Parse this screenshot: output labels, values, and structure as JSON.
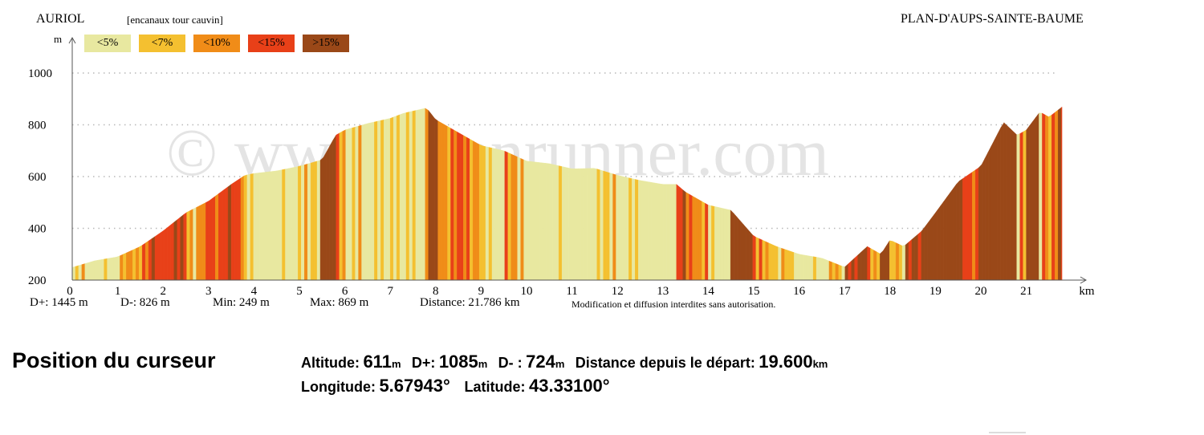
{
  "header": {
    "start": "AURIOL",
    "route": "[encanaux tour cauvin]",
    "end": "PLAN-D'AUPS-SAINTE-BAUME"
  },
  "watermark": "© www.openrunner.com",
  "legend": [
    {
      "label": "<5%",
      "color": "#e8e8a0"
    },
    {
      "label": "<7%",
      "color": "#f4c030"
    },
    {
      "label": "<10%",
      "color": "#f08c18"
    },
    {
      "label": "<15%",
      "color": "#e84018"
    },
    {
      "label": ">15%",
      "color": "#9a4818"
    }
  ],
  "chart_data": {
    "type": "area",
    "ylabel": "m",
    "xlabel": "km",
    "ylim": [
      200,
      1000
    ],
    "yticks": [
      200,
      400,
      600,
      800,
      1000
    ],
    "xlim": [
      0,
      21.786
    ],
    "xticks": [
      0,
      1,
      2,
      3,
      4,
      5,
      6,
      7,
      8,
      9,
      10,
      11,
      12,
      13,
      14,
      15,
      16,
      17,
      18,
      19,
      20,
      21
    ],
    "grid": "dotted-horizontal",
    "profile": [
      [
        0,
        249
      ],
      [
        0.5,
        275
      ],
      [
        1,
        290
      ],
      [
        1.5,
        330
      ],
      [
        2,
        390
      ],
      [
        2.5,
        460
      ],
      [
        3,
        505
      ],
      [
        3.5,
        570
      ],
      [
        3.8,
        605
      ],
      [
        4,
        612
      ],
      [
        4.5,
        622
      ],
      [
        5,
        640
      ],
      [
        5.5,
        665
      ],
      [
        5.8,
        760
      ],
      [
        6,
        780
      ],
      [
        6.5,
        805
      ],
      [
        7,
        825
      ],
      [
        7.3,
        845
      ],
      [
        7.8,
        865
      ],
      [
        8,
        820
      ],
      [
        8.5,
        770
      ],
      [
        9,
        720
      ],
      [
        9.5,
        700
      ],
      [
        10,
        660
      ],
      [
        10.5,
        650
      ],
      [
        11,
        630
      ],
      [
        11.5,
        632
      ],
      [
        12,
        605
      ],
      [
        12.5,
        585
      ],
      [
        13,
        570
      ],
      [
        13.3,
        570
      ],
      [
        13.5,
        540
      ],
      [
        14,
        490
      ],
      [
        14.5,
        470
      ],
      [
        15,
        370
      ],
      [
        15.5,
        330
      ],
      [
        16,
        300
      ],
      [
        16.5,
        285
      ],
      [
        17,
        250
      ],
      [
        17.5,
        330
      ],
      [
        17.8,
        300
      ],
      [
        18,
        355
      ],
      [
        18.3,
        330
      ],
      [
        18.7,
        390
      ],
      [
        19,
        460
      ],
      [
        19.5,
        580
      ],
      [
        20,
        640
      ],
      [
        20.5,
        810
      ],
      [
        20.8,
        760
      ],
      [
        21,
        780
      ],
      [
        21.3,
        850
      ],
      [
        21.5,
        830
      ],
      [
        21.786,
        869
      ]
    ]
  },
  "stats": {
    "dplus": "D+: 1445 m",
    "dminus": "D-: 826 m",
    "min": "Min: 249 m",
    "max": "Max: 869 m",
    "distance": "Distance: 21.786 km",
    "notice": "Modification et diffusion interdites sans autorisation."
  },
  "cursor": {
    "title": "Position du curseur",
    "altitude_label": "Altitude:",
    "altitude_value": "611",
    "altitude_unit": "m",
    "dplus_label": "D+:",
    "dplus_value": "1085",
    "dplus_unit": "m",
    "dminus_label": "D- :",
    "dminus_value": "724",
    "dminus_unit": "m",
    "distance_label": "Distance depuis le départ:",
    "distance_value": "19.600",
    "distance_unit": "km",
    "longitude_label": "Longitude:",
    "longitude_value": "5.67943°",
    "latitude_label": "Latitude:",
    "latitude_value": "43.33100°"
  }
}
